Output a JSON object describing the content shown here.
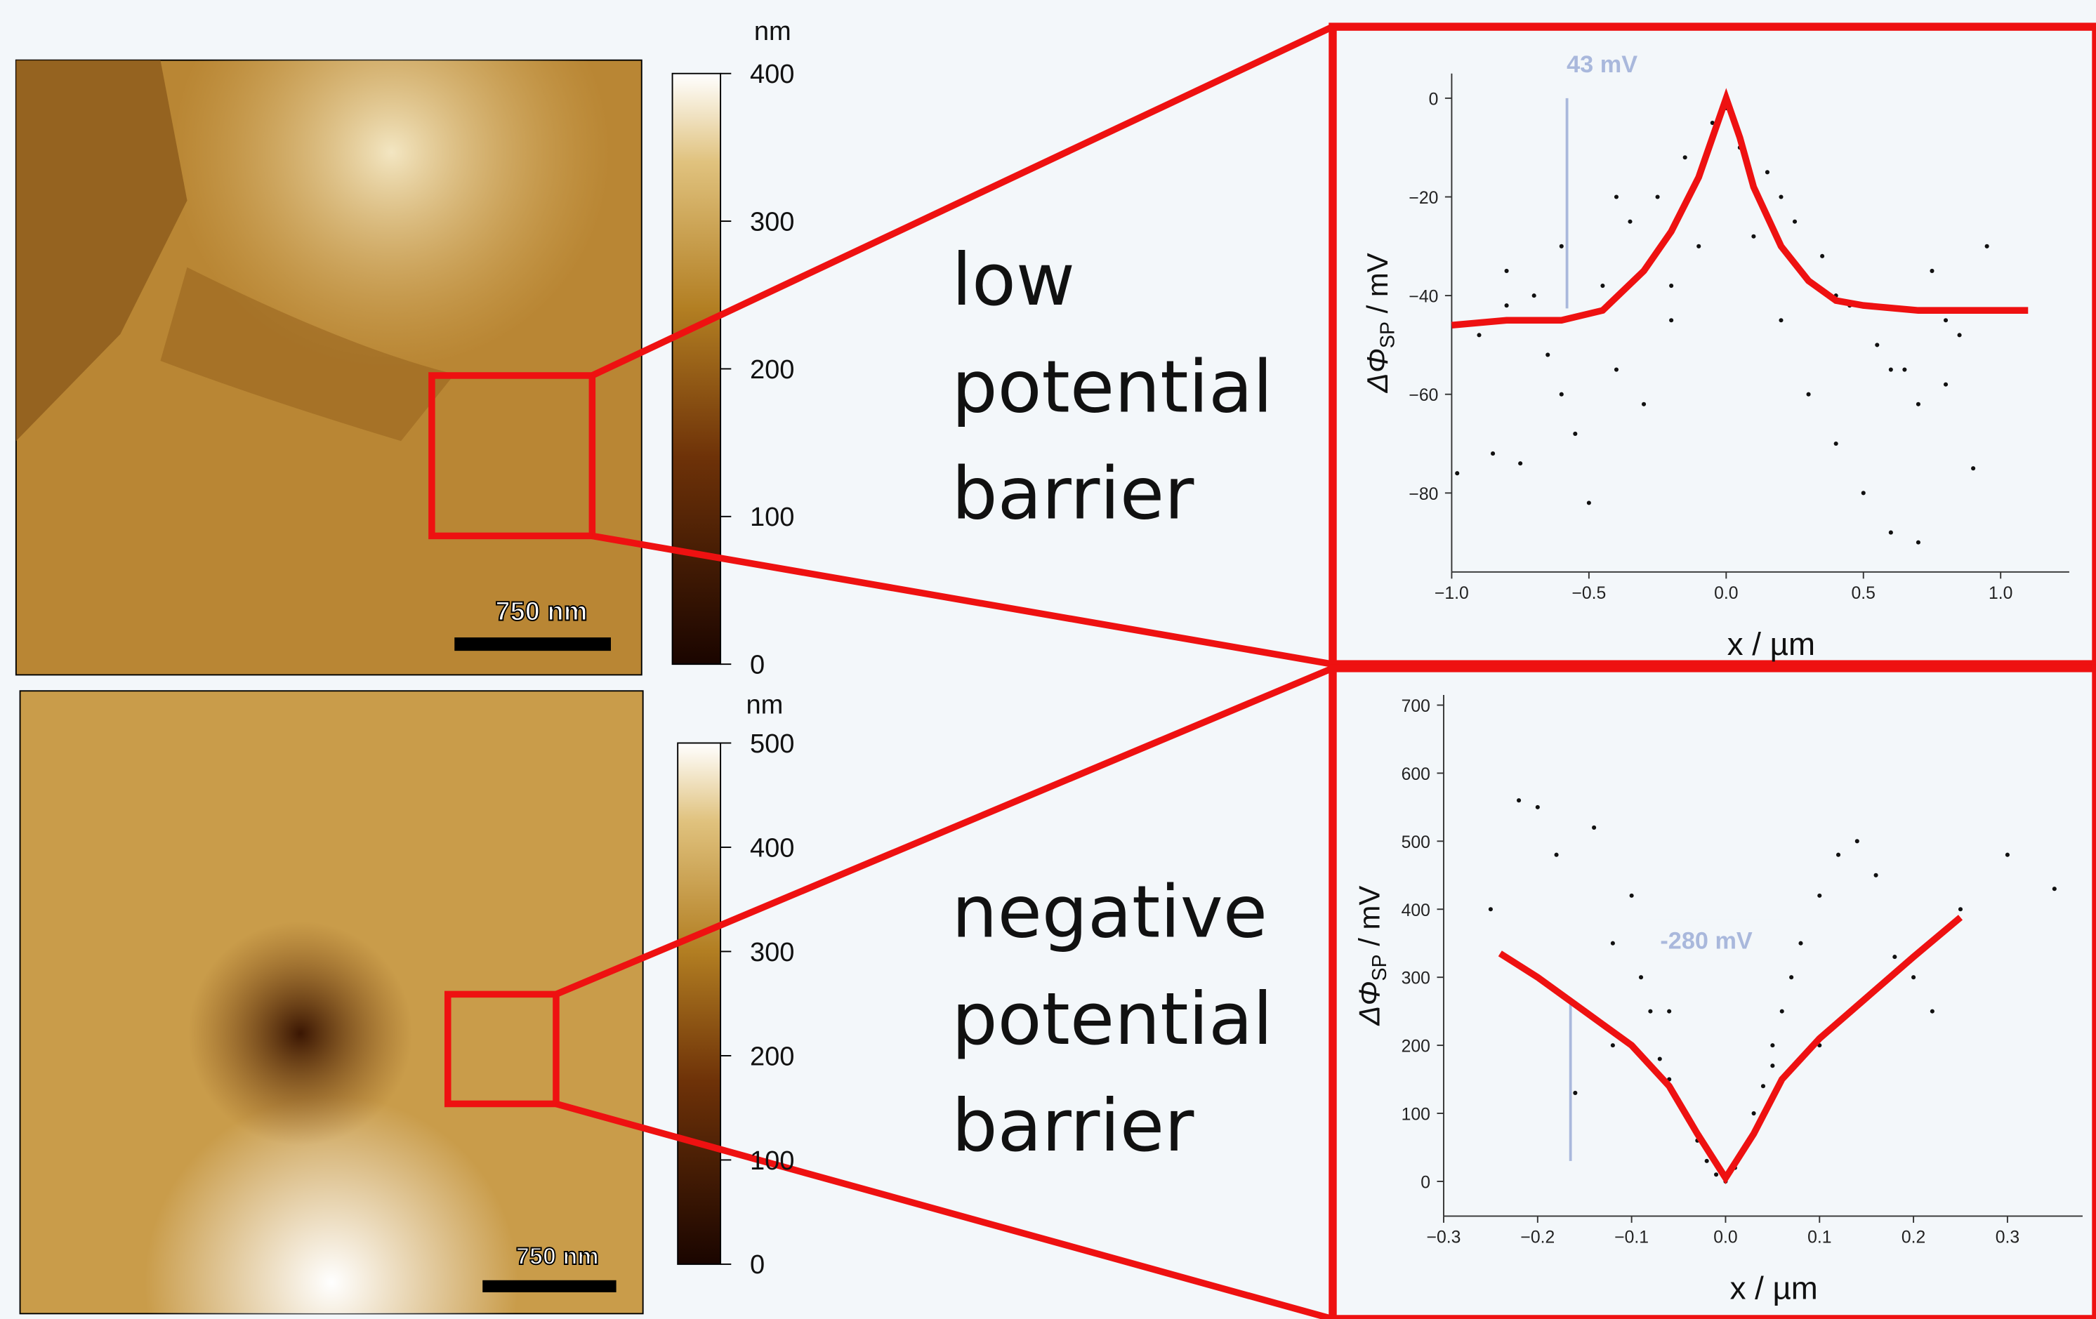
{
  "panels": [
    {
      "colorbar": {
        "unit": "nm",
        "clim": [
          0,
          400
        ],
        "ticks": [
          0,
          100,
          200,
          300,
          400
        ]
      },
      "scale_bar": "750 nm",
      "caption": [
        "low",
        "potential",
        "barrier"
      ]
    },
    {
      "colorbar": {
        "unit": "nm",
        "clim": [
          0,
          500
        ],
        "ticks": [
          0,
          100,
          200,
          300,
          400,
          500
        ]
      },
      "scale_bar": "750 nm",
      "caption": [
        "negative",
        "potential",
        "barrier"
      ]
    }
  ],
  "chart_data": [
    {
      "type": "scatter",
      "annotation": "43 mV",
      "y_label": [
        "ΔΦ",
        "SP",
        " / mV"
      ],
      "x_label": "x / µm",
      "xlim": [
        -1.0,
        1.25
      ],
      "ylim": [
        -96,
        5
      ],
      "xticks": [
        {
          "value": -1.0,
          "label": "−1.0"
        },
        {
          "value": -0.5,
          "label": "−0.5"
        },
        {
          "value": 0,
          "label": "0.0"
        },
        {
          "value": 0.5,
          "label": "0.5"
        },
        {
          "value": 1.0,
          "label": "1.0"
        }
      ],
      "yticks": [
        0,
        {
          "value": -20,
          "label": "−20"
        },
        {
          "value": -40,
          "label": "−40"
        },
        {
          "value": -60,
          "label": "−60"
        },
        {
          "value": -80,
          "label": "−80"
        }
      ],
      "series": [
        {
          "mode": "markers",
          "color": "#111111",
          "x": [
            -0.98,
            -0.9,
            -0.85,
            -0.8,
            -0.75,
            -0.7,
            -0.65,
            -0.6,
            -0.55,
            -0.5,
            -0.45,
            -0.4,
            -0.35,
            -0.3,
            -0.25,
            -0.2,
            -0.15,
            -0.1,
            -0.05,
            0.0,
            0.05,
            0.1,
            0.15,
            0.2,
            0.25,
            0.3,
            0.35,
            0.4,
            0.45,
            0.5,
            0.55,
            0.6,
            0.65,
            0.7,
            0.75,
            0.8,
            0.85,
            0.9,
            0.95,
            -0.6,
            -0.4,
            -0.2,
            0.2,
            0.4,
            0.6,
            0.8,
            -0.8,
            0.7
          ],
          "values": [
            -76,
            -48,
            -72,
            -42,
            -74,
            -40,
            -52,
            -30,
            -68,
            -82,
            -38,
            -55,
            -25,
            -62,
            -20,
            -45,
            -12,
            -30,
            -5,
            -2,
            -10,
            -28,
            -15,
            -45,
            -25,
            -60,
            -32,
            -70,
            -42,
            -80,
            -50,
            -88,
            -55,
            -62,
            -35,
            -58,
            -48,
            -75,
            -30,
            -60,
            -20,
            -38,
            -20,
            -40,
            -55,
            -45,
            -35,
            -90
          ]
        },
        {
          "mode": "line",
          "color": "#ee1111",
          "x": [
            -1.0,
            -0.8,
            -0.6,
            -0.45,
            -0.3,
            -0.2,
            -0.1,
            -0.05,
            0,
            0.05,
            0.1,
            0.2,
            0.3,
            0.4,
            0.5,
            0.7,
            0.9,
            1.1
          ],
          "values": [
            -46,
            -45,
            -45,
            -43,
            -35,
            -27,
            -16,
            -8,
            0,
            -8,
            -18,
            -30,
            -37,
            -41,
            -42,
            -43,
            -43,
            -43
          ]
        }
      ]
    },
    {
      "type": "scatter",
      "annotation": "-280 mV",
      "y_label": [
        "ΔΦ",
        "SP",
        " / mV"
      ],
      "x_label": "x / µm",
      "xlim": [
        -0.3,
        0.38
      ],
      "ylim": [
        -51,
        715
      ],
      "xticks": [
        {
          "value": -0.3,
          "label": "−0.3"
        },
        {
          "value": -0.2,
          "label": "−0.2"
        },
        {
          "value": -0.1,
          "label": "−0.1"
        },
        {
          "value": 0,
          "label": "0.0"
        },
        0.1,
        0.2,
        0.3
      ],
      "yticks": [
        0,
        100,
        200,
        300,
        400,
        500,
        600,
        700
      ],
      "series": [
        {
          "mode": "markers",
          "color": "#111111",
          "x": [
            -0.25,
            -0.22,
            -0.2,
            -0.18,
            -0.16,
            -0.14,
            -0.12,
            -0.1,
            -0.09,
            -0.08,
            -0.07,
            -0.06,
            -0.05,
            -0.04,
            -0.03,
            -0.02,
            -0.01,
            0,
            0.01,
            0.02,
            0.03,
            0.04,
            0.05,
            0.06,
            0.07,
            0.08,
            0.1,
            0.12,
            0.14,
            0.16,
            0.18,
            0.2,
            0.22,
            0.25,
            0.3,
            0.35,
            -0.12,
            -0.06,
            0.05,
            0.1
          ],
          "values": [
            400,
            560,
            550,
            480,
            130,
            520,
            350,
            420,
            300,
            250,
            180,
            150,
            120,
            90,
            60,
            30,
            10,
            0,
            20,
            50,
            100,
            140,
            200,
            250,
            300,
            350,
            420,
            480,
            500,
            450,
            330,
            300,
            250,
            400,
            480,
            430,
            200,
            250,
            170,
            200
          ]
        },
        {
          "mode": "line",
          "color": "#ee1111",
          "x": [
            -0.24,
            -0.2,
            -0.15,
            -0.1,
            -0.06,
            -0.03,
            0,
            0.03,
            0.06,
            0.1,
            0.15,
            0.2,
            0.25
          ],
          "values": [
            335,
            300,
            250,
            200,
            140,
            70,
            5,
            70,
            150,
            210,
            270,
            330,
            388
          ]
        }
      ]
    }
  ]
}
